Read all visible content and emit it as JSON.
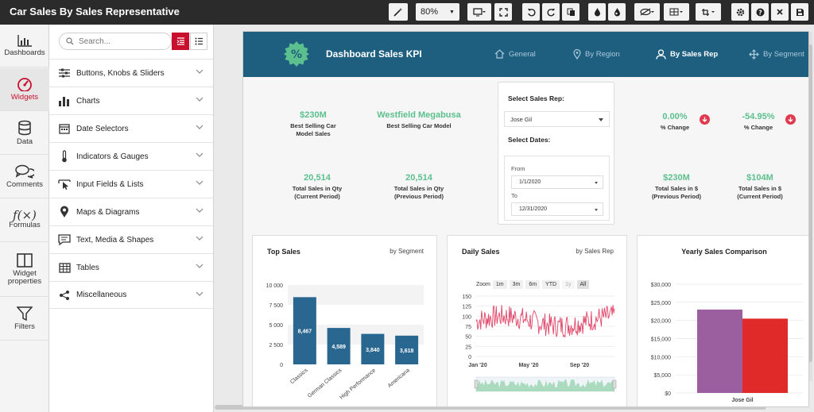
{
  "app": {
    "title": "Car Sales By Sales Representative"
  },
  "toolbar": {
    "zoom": "80%",
    "icons": [
      "magic-wand-icon",
      "monitor-icon",
      "fullscreen-icon",
      "undo-icon",
      "redo-icon",
      "copy-icon",
      "fill-drop-icon",
      "color-drop-icon",
      "visibility-icon",
      "grid-icon",
      "crop-icon",
      "gear-icon",
      "help-icon",
      "close-icon",
      "save-icon"
    ]
  },
  "rail": {
    "items": [
      {
        "label": "Dashboards",
        "icon": "bar-chart-icon"
      },
      {
        "label": "Widgets",
        "icon": "gauge-icon"
      },
      {
        "label": "Data",
        "icon": "database-icon"
      },
      {
        "label": "Comments",
        "icon": "comments-icon"
      },
      {
        "label": "Formulas",
        "icon": "function-icon"
      },
      {
        "label": "Widget properties",
        "icon": "panel-icon"
      },
      {
        "label": "Filters",
        "icon": "funnel-icon"
      }
    ]
  },
  "panel": {
    "search_placeholder": "Search...",
    "categories": [
      {
        "label": "Buttons, Knobs & Sliders",
        "icon": "sliders-icon"
      },
      {
        "label": "Charts",
        "icon": "bar-chart-icon"
      },
      {
        "label": "Date Selectors",
        "icon": "calendar-icon"
      },
      {
        "label": "Indicators & Gauges",
        "icon": "thermometer-icon"
      },
      {
        "label": "Input Fields & Lists",
        "icon": "cursor-icon"
      },
      {
        "label": "Maps & Diagrams",
        "icon": "map-pin-icon"
      },
      {
        "label": "Text, Media & Shapes",
        "icon": "text-media-icon"
      },
      {
        "label": "Tables",
        "icon": "table-icon"
      },
      {
        "label": "Miscellaneous",
        "icon": "share-icon"
      }
    ]
  },
  "dashboard": {
    "title": "Dashboard Sales KPI",
    "badge": "%",
    "tabs": [
      {
        "label": "General",
        "icon": "home-icon"
      },
      {
        "label": "By Region",
        "icon": "map-pin-icon"
      },
      {
        "label": "By Sales Rep",
        "icon": "user-icon"
      },
      {
        "label": "By Segment",
        "icon": "segment-icon"
      }
    ],
    "kpis": {
      "best_sales_val": "$230M",
      "best_sales_lbl1": "Best Selling Car",
      "best_sales_lbl2": "Model Sales",
      "best_model_val": "Westfield Megabusa",
      "best_model_lbl": "Best Selling Car Model",
      "qty_cur_val": "20,514",
      "qty_cur_lbl1": "Total Sales in Qty",
      "qty_cur_lbl2": "(Current Period)",
      "qty_prev_val": "20,514",
      "qty_prev_lbl1": "Total Sales in Qty",
      "qty_prev_lbl2": "(Previous Period)",
      "pct1_val": "0.00%",
      "pct1_lbl": "% Change",
      "pct2_val": "-54.95%",
      "pct2_lbl": "% Change",
      "usd_prev_val": "$230M",
      "usd_prev_lbl1": "Total Sales in $",
      "usd_prev_lbl2": "(Previous Period)",
      "usd_cur_val": "$104M",
      "usd_cur_lbl1": "Total Sales in $",
      "usd_cur_lbl2": "(Current Period)"
    },
    "filter": {
      "rep_label": "Select Sales Rep:",
      "rep_value": "Jose Gil",
      "dates_label": "Select Dates:",
      "from_label": "From",
      "from_value": "1/1/2020",
      "to_label": "To",
      "to_value": "12/31/2020"
    },
    "cards": {
      "top_sales_title": "Top Sales",
      "top_sales_sub": "by Segment",
      "daily_title": "Daily Sales",
      "daily_sub": "by Sales Rep",
      "yearly_title": "Yearly Sales Comparison",
      "zoom_label": "Zoom",
      "zoom_options": [
        "1m",
        "3m",
        "6m",
        "YTD",
        "1y",
        "All"
      ]
    }
  },
  "chart_data": [
    {
      "type": "bar",
      "title": "Top Sales",
      "categories": [
        "Classics",
        "German Classics",
        "High Performance",
        "Americana"
      ],
      "values": [
        8467,
        4589,
        3840,
        3618
      ],
      "data_labels": [
        "8,467",
        "4,589",
        "3,840",
        "3,618"
      ],
      "ylim": [
        0,
        10000
      ],
      "yticks": [
        "0",
        "2 500",
        "5 000",
        "7 500",
        "10 000"
      ],
      "color": "#2a6790"
    },
    {
      "type": "line",
      "title": "Daily Sales",
      "ylim": [
        0,
        150
      ],
      "yticks": [
        "0",
        "25",
        "50",
        "75",
        "100",
        "125",
        "150"
      ],
      "xticks": [
        "Jan '20",
        "May '20",
        "Sep '20"
      ],
      "color": "#e0476a",
      "navigator_color": "#7dc99a"
    },
    {
      "type": "bar",
      "title": "Yearly Sales Comparison",
      "categories": [
        "Jose Gil"
      ],
      "series": [
        {
          "values": [
            23000000
          ],
          "color": "#9b5fa0"
        },
        {
          "values": [
            20500000
          ],
          "color": "#e02a2a"
        }
      ],
      "ylim": [
        0,
        30000000
      ],
      "yticks": [
        "$0",
        "$5,000",
        "$10,000",
        "$15,000",
        "$20,000",
        "$25,000",
        "$30,000"
      ]
    }
  ]
}
